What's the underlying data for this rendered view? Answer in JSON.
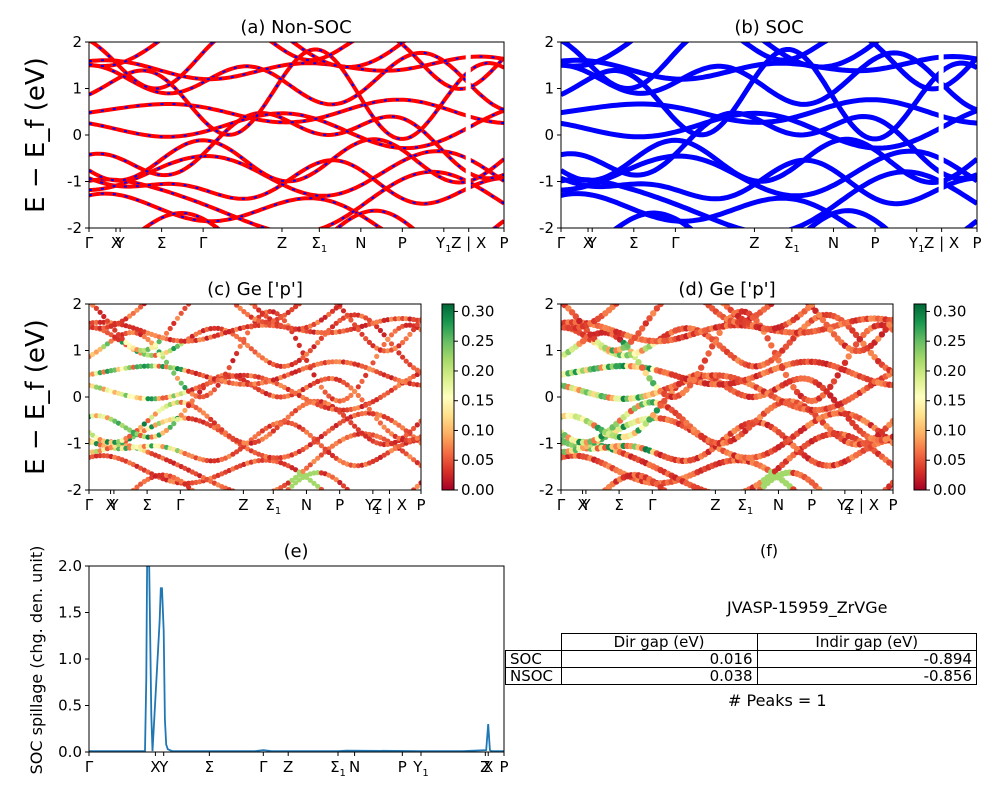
{
  "chart_data": [
    {
      "panel": "a",
      "type": "line",
      "title": "(a) Non-SOC",
      "ylabel": "E − E_f (eV)",
      "ylim": [
        -2,
        2
      ],
      "yticks": [
        -2,
        -1,
        0,
        1,
        2
      ],
      "xtick_labels": [
        "Γ",
        "X",
        "Y",
        "Σ",
        "Γ",
        "Z",
        "Σ1",
        "N",
        "P",
        "Y1",
        "Z | X",
        "P"
      ],
      "colors": {
        "primary": "#ff0000",
        "dash": "#0000ff"
      }
    },
    {
      "panel": "b",
      "type": "line",
      "title": "(b) SOC",
      "ylim": [
        -2,
        2
      ],
      "yticks": [
        -2,
        -1,
        0,
        1,
        2
      ],
      "xtick_labels": [
        "Γ",
        "X",
        "Y",
        "Σ",
        "Γ",
        "Z",
        "Σ1",
        "N",
        "P",
        "Y1",
        "Z | X",
        "P"
      ],
      "colors": {
        "primary": "#0000ff"
      }
    },
    {
      "panel": "c",
      "type": "scatter",
      "title": "(c)  Ge ['p']",
      "ylabel": "E − E_f (eV)",
      "ylim": [
        -2,
        2
      ],
      "yticks": [
        -2,
        -1,
        0,
        1,
        2
      ],
      "xtick_labels": [
        "Γ",
        "X",
        "Y",
        "Σ",
        "Γ",
        "Z",
        "Σ1",
        "N",
        "P",
        "Y1",
        "Z | X",
        "P"
      ],
      "colorbar": {
        "colormap": "RdYlGn",
        "range": [
          0.0,
          0.3125
        ],
        "ticks": [
          "0.00",
          "0.05",
          "0.10",
          "0.15",
          "0.20",
          "0.25",
          "0.30"
        ]
      }
    },
    {
      "panel": "d",
      "type": "scatter",
      "title": "(d) Ge ['p']",
      "ylim": [
        -2,
        2
      ],
      "yticks": [
        -2,
        -1,
        0,
        1,
        2
      ],
      "xtick_labels": [
        "Γ",
        "X",
        "Y",
        "Σ",
        "Γ",
        "Z",
        "Σ1",
        "N",
        "P",
        "Y1",
        "Z | X",
        "P"
      ],
      "colorbar": {
        "colormap": "RdYlGn",
        "range": [
          0.0,
          0.3125
        ],
        "ticks": [
          "0.00",
          "0.05",
          "0.10",
          "0.15",
          "0.20",
          "0.25",
          "0.30"
        ]
      }
    },
    {
      "panel": "e",
      "type": "line",
      "title": "(e)",
      "ylabel": "SOC spillage (chg. den. unit)",
      "ylim": [
        0,
        2.0
      ],
      "yticks": [
        "0.0",
        "0.5",
        "1.0",
        "1.5",
        "2.0"
      ],
      "xtick_labels": [
        "Γ",
        "X",
        "Y",
        "Σ",
        "Γ",
        "Z",
        "Σ1",
        "N",
        "P",
        "Y1",
        "Z",
        "X",
        "P"
      ],
      "x": [
        0,
        0.135,
        0.138,
        0.14,
        0.145,
        0.15,
        0.153,
        0.17,
        0.173,
        0.176,
        0.18,
        0.183,
        0.186,
        0.19,
        0.2,
        0.4,
        0.42,
        0.44,
        0.6,
        0.62,
        0.8,
        0.9,
        0.957,
        0.962,
        0.966,
        0.97,
        1.0
      ],
      "y": [
        0.01,
        0.01,
        0.8,
        2.0,
        2.0,
        0.4,
        0.01,
        1.4,
        1.76,
        1.76,
        1.3,
        0.35,
        0.08,
        0.03,
        0.01,
        0.01,
        0.02,
        0.01,
        0.01,
        0.015,
        0.01,
        0.01,
        0.02,
        0.3,
        0.02,
        0.01,
        0.01
      ],
      "color": "#1f77b4"
    },
    {
      "panel": "f",
      "type": "table",
      "title": "(f)",
      "caption": "JVASP-15959_ZrVGe",
      "columns": [
        "Dir gap (eV)",
        "Indir gap (eV)"
      ],
      "rows": [
        {
          "label": "SOC",
          "dir": "0.016",
          "indir": "-0.894"
        },
        {
          "label": "NSOC",
          "dir": "0.038",
          "indir": "-0.856"
        }
      ],
      "footnote": "# Peaks = 1"
    }
  ]
}
